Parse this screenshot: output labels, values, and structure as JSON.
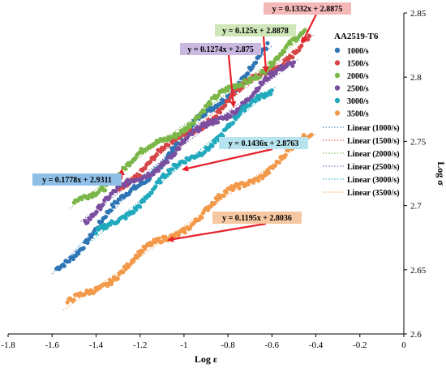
{
  "chart_data": {
    "type": "scatter",
    "title": "",
    "xlabel": "Log ε",
    "ylabel": "Log σ",
    "xlim": [
      -1.8,
      0
    ],
    "ylim": [
      2.6,
      2.85
    ],
    "x_ticks": [
      "-1.8",
      "-1.6",
      "-1.4",
      "-1.2",
      "-1",
      "-0.8",
      "-0.6",
      "-0.4",
      "-0.2",
      "0"
    ],
    "y_ticks": [
      "2.6",
      "2.65",
      "2.7",
      "2.75",
      "2.8",
      "2.85"
    ],
    "grid": false,
    "legend_title": "AA2519-T6",
    "legend_position": "right",
    "series": [
      {
        "name": "1000/s",
        "color": "#2e75b6",
        "range": [
          -1.58,
          -0.62
        ],
        "slope": 0.1778,
        "intercept": 2.9311
      },
      {
        "name": "1500/s",
        "color": "#d64545",
        "range": [
          -1.3,
          -0.43
        ],
        "slope": 0.1332,
        "intercept": 2.8875
      },
      {
        "name": "2000/s",
        "color": "#7ab648",
        "range": [
          -1.5,
          -0.45
        ],
        "slope": 0.125,
        "intercept": 2.8878
      },
      {
        "name": "2500/s",
        "color": "#7b4fa0",
        "range": [
          -1.45,
          -0.5
        ],
        "slope": 0.1274,
        "intercept": 2.875
      },
      {
        "name": "3000/s",
        "color": "#21a9bd",
        "range": [
          -1.4,
          -0.6
        ],
        "slope": 0.1436,
        "intercept": 2.8763
      },
      {
        "name": "3500/s",
        "color": "#f2994a",
        "range": [
          -1.53,
          -0.42
        ],
        "slope": 0.1195,
        "intercept": 2.8036
      }
    ],
    "trendlines": [
      "Linear (1000/s)",
      "Linear (1500/s)",
      "Linear (2000/s)",
      "Linear (2500/s)",
      "Linear (3000/s)",
      "Linear (3500/s)"
    ],
    "annotations": [
      {
        "text": "y = 0.1332x + 2.8875",
        "bg": "#f4b8b8",
        "series": "1500/s"
      },
      {
        "text": "y = 0.125x + 2.8878",
        "bg": "#cfe6b8",
        "series": "2000/s"
      },
      {
        "text": "y = 0.1274x + 2.875",
        "bg": "#c9b8e0",
        "series": "2500/s"
      },
      {
        "text": "y = 0.1436x + 2.8763",
        "bg": "#b7e4ee",
        "series": "3000/s"
      },
      {
        "text": "y = 0.1778x + 2.9311",
        "bg": "#8fbfe6",
        "series": "1000/s"
      },
      {
        "text": "y = 0.1195x + 2.8036",
        "bg": "#f6c7a1",
        "series": "3500/s"
      }
    ]
  }
}
